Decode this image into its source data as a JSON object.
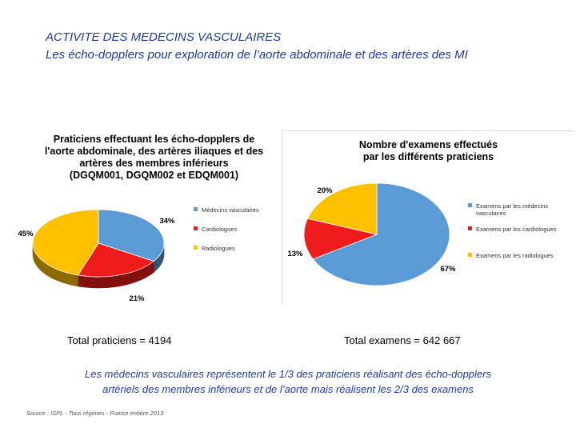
{
  "header": {
    "title": "ACTIVITE DES MEDECINS VASCULAIRES",
    "subtitle": "Les écho-dopplers pour exploration de l’aorte abdominale et des artères des MI"
  },
  "chart_data": [
    {
      "type": "pie",
      "title_lines": [
        "Praticiens effectuant les écho-dopplers de",
        "l'aorte abdominale, des artères iliaques et des",
        "artères des membres inférieurs",
        "(DGQM001, DGQM002 et EDQM001)"
      ],
      "categories": [
        "Médecins vasculaires",
        "Cardiologues",
        "Radiologues"
      ],
      "values": [
        34,
        21,
        45
      ],
      "value_labels": [
        "34%",
        "21%",
        "45%"
      ],
      "colors": [
        "#5b9bd5",
        "#ee1c1c",
        "#ffc000"
      ],
      "legend_position": "right",
      "style": "3d"
    },
    {
      "type": "pie",
      "title_lines": [
        "Nombre d'examens effectués",
        "par les différents praticiens"
      ],
      "categories": [
        "Examens par les médecins vasculaires",
        "Examens par les cardiologues",
        "Examens par les radiologues"
      ],
      "legend_lines": [
        [
          "Examens par les médecins",
          "vasculaires"
        ],
        [
          "Examens par les cardiologues"
        ],
        [
          "Examens par les radiologues"
        ]
      ],
      "values": [
        67,
        13,
        20
      ],
      "value_labels": [
        "67%",
        "13%",
        "20%"
      ],
      "colors": [
        "#5b9bd5",
        "#ee1c1c",
        "#ffc000"
      ],
      "legend_position": "right",
      "style": "flat"
    }
  ],
  "totals": {
    "left": "Total praticiens = 4194",
    "right": "Total examens = 642 667"
  },
  "summary_lines": [
    "Les médecins vasculaires représentent le 1/3 des praticiens réalisant des écho-dopplers",
    "artériels des membres inférieurs et de l’aorte mais réalisent les 2/3 des examens"
  ],
  "source": "Source : ISPL - Tous régimes - France entière 2013"
}
